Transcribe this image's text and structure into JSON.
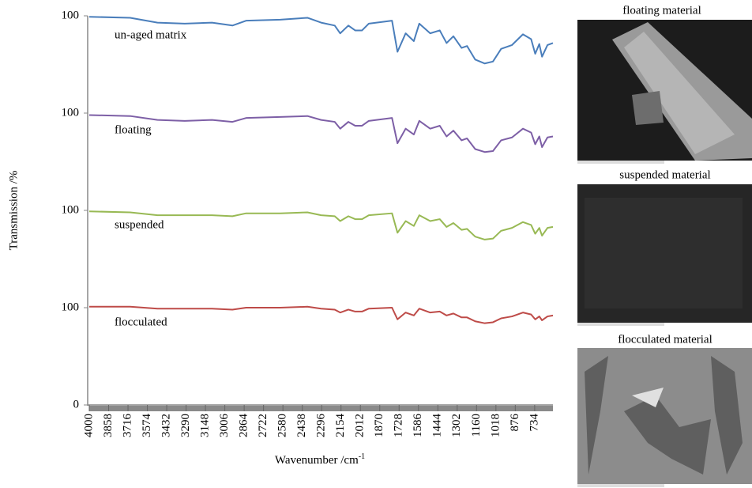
{
  "chart_data": {
    "type": "line",
    "y_label": "Transmission /%",
    "x_label": "Wavenumber /cm",
    "x_label_superscript": "-1",
    "xlim": [
      4000,
      600
    ],
    "xticks": [
      4000,
      3858,
      3716,
      3574,
      3432,
      3290,
      3148,
      3006,
      2864,
      2722,
      2580,
      2438,
      2296,
      2154,
      2012,
      1870,
      1728,
      1586,
      1444,
      1302,
      1160,
      1018,
      876,
      734
    ],
    "ylim": [
      0,
      400
    ],
    "yticks": [
      0,
      {
        "value": 100,
        "label": "100"
      },
      {
        "value": 200,
        "label": "100"
      },
      {
        "value": 300,
        "label": "100"
      },
      {
        "value": 400,
        "label": "100"
      }
    ],
    "x": [
      4000,
      3700,
      3500,
      3300,
      3100,
      2950,
      2850,
      2600,
      2400,
      2300,
      2200,
      2160,
      2100,
      2050,
      2000,
      1950,
      1780,
      1740,
      1680,
      1620,
      1580,
      1500,
      1430,
      1380,
      1330,
      1270,
      1230,
      1170,
      1100,
      1040,
      980,
      900,
      820,
      760,
      730,
      700,
      680,
      640,
      600
    ],
    "series": [
      {
        "name": "un-aged matrix",
        "color": "#4a7ebb",
        "values": [
          399,
          398,
          393,
          392,
          393,
          390,
          395,
          396,
          398,
          393,
          390,
          382,
          390,
          385,
          385,
          392,
          395,
          363,
          382,
          374,
          392,
          382,
          385,
          372,
          379,
          367,
          369,
          355,
          351,
          353,
          366,
          370,
          381,
          376,
          361,
          371,
          358,
          370,
          372
        ]
      },
      {
        "name": "floating",
        "color": "#7d5fa6",
        "values": [
          298,
          297,
          293,
          292,
          293,
          291,
          295,
          296,
          297,
          293,
          291,
          284,
          291,
          287,
          287,
          292,
          295,
          269,
          284,
          278,
          292,
          284,
          287,
          276,
          282,
          272,
          274,
          263,
          260,
          261,
          272,
          275,
          284,
          280,
          268,
          276,
          265,
          275,
          276
        ]
      },
      {
        "name": "suspended",
        "color": "#98b954",
        "values": [
          199,
          198,
          195,
          195,
          195,
          194,
          197,
          197,
          198,
          195,
          194,
          189,
          194,
          191,
          191,
          195,
          197,
          177,
          189,
          184,
          195,
          189,
          191,
          183,
          187,
          180,
          181,
          173,
          170,
          171,
          179,
          182,
          188,
          185,
          176,
          182,
          174,
          182,
          183
        ]
      },
      {
        "name": "flocculated",
        "color": "#be4b48",
        "values": [
          101,
          101,
          99,
          99,
          99,
          98,
          100,
          100,
          101,
          99,
          98,
          95,
          98,
          96,
          96,
          99,
          100,
          88,
          95,
          92,
          99,
          95,
          96,
          92,
          94,
          90,
          90,
          86,
          84,
          85,
          89,
          91,
          95,
          93,
          88,
          91,
          87,
          91,
          92
        ]
      }
    ],
    "image_titles": [
      "floating material",
      "suspended material",
      "flocculated material"
    ]
  }
}
